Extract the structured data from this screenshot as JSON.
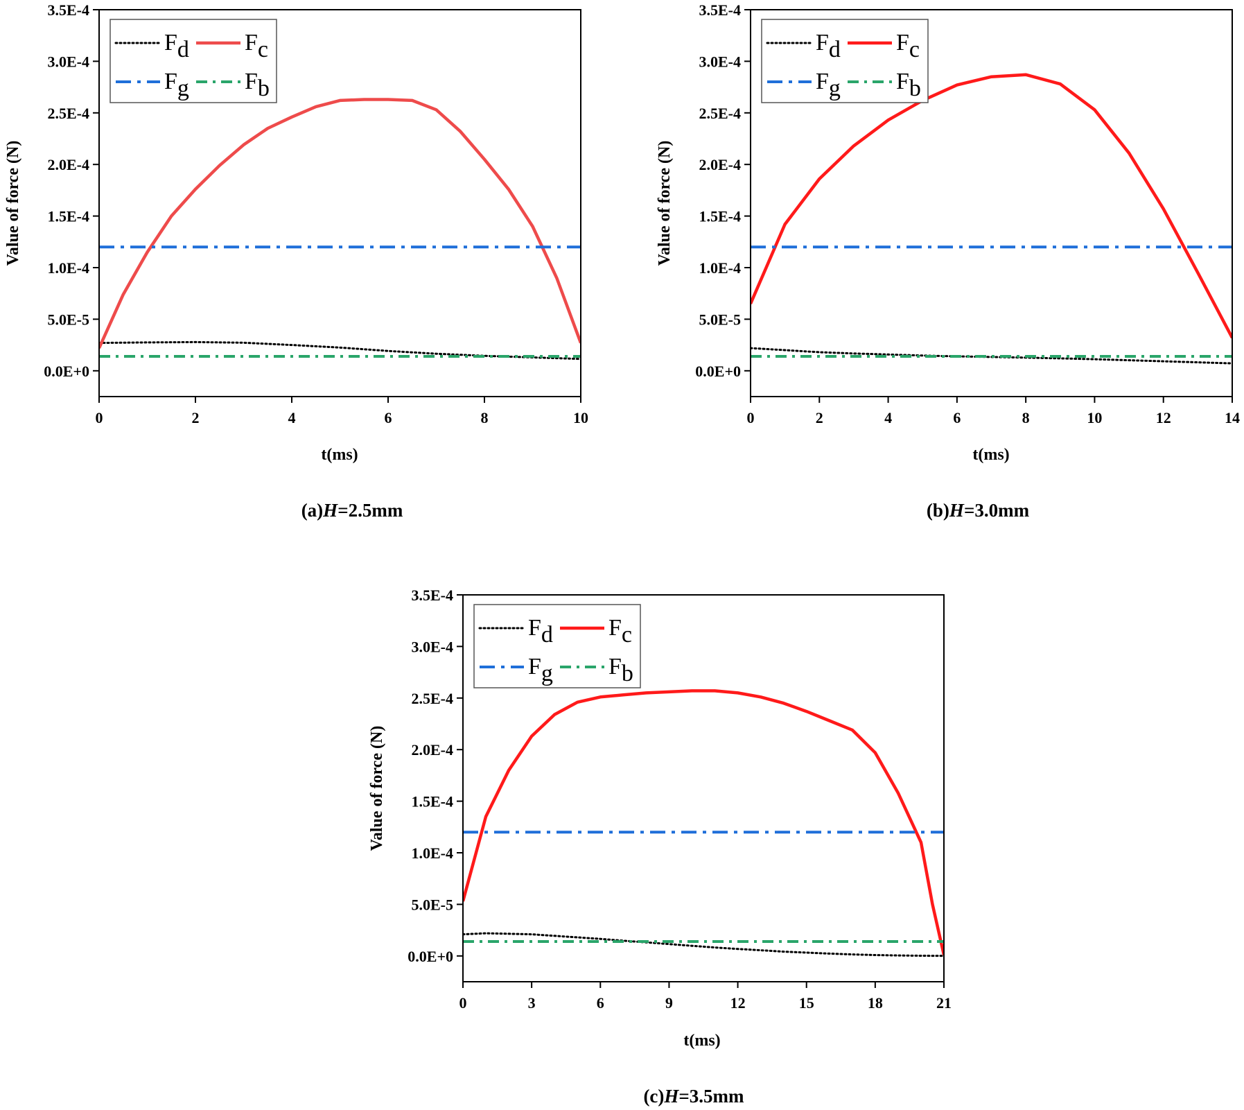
{
  "chart_data": [
    {
      "type": "line",
      "caption_prefix": "(a)",
      "caption_var": "H",
      "caption_suffix": "=2.5mm",
      "xlabel": "t(ms)",
      "ylabel": "Value of force (N)",
      "xlim": [
        0,
        10
      ],
      "ylim": [
        -2.5e-05,
        0.00035
      ],
      "xticks": [
        0,
        2,
        4,
        6,
        8,
        10
      ],
      "xtick_labels": [
        "0",
        "2",
        "4",
        "6",
        "8",
        "10"
      ],
      "yticks": [
        0,
        5e-05,
        0.0001,
        0.00015,
        0.0002,
        0.00025,
        0.0003,
        0.00035
      ],
      "ytick_labels": [
        "0.0E+0",
        "5.0E-5",
        "1.0E-4",
        "1.5E-4",
        "2.0E-4",
        "2.5E-4",
        "3.0E-4",
        "3.5E-4"
      ],
      "grid": false,
      "legend_position": "top-left",
      "series": [
        {
          "name": "Fd",
          "sub": "d",
          "color": "#000000",
          "style": "dotted",
          "x": [
            0,
            1,
            2,
            3,
            4,
            5,
            6,
            7,
            8,
            9,
            10
          ],
          "y": [
            2.7e-05,
            2.75e-05,
            2.78e-05,
            2.72e-05,
            2.5e-05,
            2.25e-05,
            1.92e-05,
            1.65e-05,
            1.45e-05,
            1.3e-05,
            1.15e-05
          ]
        },
        {
          "name": "Fc",
          "sub": "c",
          "color": "#ee4b4b",
          "style": "solid",
          "x": [
            0,
            0.5,
            1,
            1.5,
            2,
            2.5,
            3,
            3.5,
            4,
            4.5,
            5,
            5.5,
            6,
            6.5,
            7,
            7.5,
            8,
            8.5,
            9,
            9.5,
            10
          ],
          "y": [
            2.2e-05,
            7.4e-05,
            0.000115,
            0.00015,
            0.000176,
            0.000199,
            0.000219,
            0.000235,
            0.000246,
            0.000256,
            0.000262,
            0.000263,
            0.000263,
            0.000262,
            0.000253,
            0.000232,
            0.000205,
            0.000176,
            0.00014,
            9e-05,
            2.7e-05
          ]
        },
        {
          "name": "Fg",
          "sub": "g",
          "color": "#1f6fd9",
          "style": "dashdot",
          "x": [
            0,
            10
          ],
          "y": [
            0.00012,
            0.00012
          ]
        },
        {
          "name": "Fb",
          "sub": "b",
          "color": "#2aa56a",
          "style": "dashdot-small",
          "x": [
            0,
            10
          ],
          "y": [
            1.4e-05,
            1.4e-05
          ]
        }
      ]
    },
    {
      "type": "line",
      "caption_prefix": "(b)",
      "caption_var": "H",
      "caption_suffix": "=3.0mm",
      "xlabel": "t(ms)",
      "ylabel": "Value of force (N)",
      "xlim": [
        0,
        14
      ],
      "ylim": [
        -2.5e-05,
        0.00035
      ],
      "xticks": [
        0,
        2,
        4,
        6,
        8,
        10,
        12,
        14
      ],
      "xtick_labels": [
        "0",
        "2",
        "4",
        "6",
        "8",
        "10",
        "12",
        "14"
      ],
      "yticks": [
        0,
        5e-05,
        0.0001,
        0.00015,
        0.0002,
        0.00025,
        0.0003,
        0.00035
      ],
      "ytick_labels": [
        "0.0E+0",
        "5.0E-5",
        "1.0E-4",
        "1.5E-4",
        "2.0E-4",
        "2.5E-4",
        "3.0E-4",
        "3.5E-4"
      ],
      "grid": false,
      "legend_position": "top-left",
      "series": [
        {
          "name": "Fd",
          "sub": "d",
          "color": "#000000",
          "style": "dotted",
          "x": [
            0,
            1,
            2,
            3,
            4,
            5,
            6,
            7,
            8,
            9,
            10,
            11,
            12,
            13,
            14
          ],
          "y": [
            2.2e-05,
            2e-05,
            1.8e-05,
            1.68e-05,
            1.58e-05,
            1.48e-05,
            1.4e-05,
            1.34e-05,
            1.28e-05,
            1.2e-05,
            1.12e-05,
            1.02e-05,
            9.2e-06,
            8.2e-06,
            7.2e-06
          ]
        },
        {
          "name": "Fc",
          "sub": "c",
          "color": "#ff1a1a",
          "style": "solid",
          "x": [
            0,
            1,
            2,
            3,
            4,
            5,
            6,
            7,
            8,
            9,
            10,
            11,
            12,
            13,
            14
          ],
          "y": [
            6.5e-05,
            0.000142,
            0.000186,
            0.000218,
            0.000243,
            0.000262,
            0.000277,
            0.000285,
            0.000287,
            0.000278,
            0.000253,
            0.000211,
            0.000157,
            9.5e-05,
            3.2e-05
          ]
        },
        {
          "name": "Fg",
          "sub": "g",
          "color": "#1f6fd9",
          "style": "dashdot",
          "x": [
            0,
            14
          ],
          "y": [
            0.00012,
            0.00012
          ]
        },
        {
          "name": "Fb",
          "sub": "b",
          "color": "#2aa56a",
          "style": "dashdot-small",
          "x": [
            0,
            14
          ],
          "y": [
            1.4e-05,
            1.4e-05
          ]
        }
      ]
    },
    {
      "type": "line",
      "caption_prefix": "(c)",
      "caption_var": "H",
      "caption_suffix": "=3.5mm",
      "xlabel": "t(ms)",
      "ylabel": "Value of force (N)",
      "xlim": [
        0,
        21
      ],
      "ylim": [
        -2.5e-05,
        0.00035
      ],
      "xticks": [
        0,
        3,
        6,
        9,
        12,
        15,
        18,
        21
      ],
      "xtick_labels": [
        "0",
        "3",
        "6",
        "9",
        "12",
        "15",
        "18",
        "21"
      ],
      "yticks": [
        0,
        5e-05,
        0.0001,
        0.00015,
        0.0002,
        0.00025,
        0.0003,
        0.00035
      ],
      "ytick_labels": [
        "0.0E+0",
        "5.0E-5",
        "1.0E-4",
        "1.5E-4",
        "2.0E-4",
        "2.5E-4",
        "3.0E-4",
        "3.5E-4"
      ],
      "grid": false,
      "legend_position": "top-left",
      "series": [
        {
          "name": "Fd",
          "sub": "d",
          "color": "#000000",
          "style": "dotted",
          "x": [
            0,
            1,
            2,
            3,
            4,
            5,
            6,
            7,
            8,
            9,
            10,
            11,
            12,
            13,
            14,
            15,
            16,
            17,
            18,
            19,
            20,
            21
          ],
          "y": [
            2.1e-05,
            2.2e-05,
            2.15e-05,
            2.1e-05,
            1.95e-05,
            1.8e-05,
            1.65e-05,
            1.48e-05,
            1.32e-05,
            1.15e-05,
            9.8e-06,
            8.2e-06,
            6.8e-06,
            5.5e-06,
            4.2e-06,
            3.2e-06,
            2.3e-06,
            1.5e-06,
            9e-07,
            5e-07,
            2e-07,
            1e-07
          ]
        },
        {
          "name": "Fc",
          "sub": "c",
          "color": "#ff1a1a",
          "style": "solid",
          "x": [
            0,
            1,
            2,
            3,
            4,
            5,
            6,
            7,
            8,
            9,
            10,
            11,
            12,
            13,
            14,
            15,
            16,
            17,
            18,
            19,
            20,
            20.5,
            21
          ],
          "y": [
            5.3e-05,
            0.000135,
            0.00018,
            0.000213,
            0.000234,
            0.000246,
            0.000251,
            0.000253,
            0.000255,
            0.000256,
            0.000257,
            0.000257,
            0.000255,
            0.000251,
            0.000245,
            0.000237,
            0.000228,
            0.000219,
            0.000197,
            0.000158,
            0.00011,
            5e-05,
            1e-06
          ]
        },
        {
          "name": "Fg",
          "sub": "g",
          "color": "#1f6fd9",
          "style": "dashdot",
          "x": [
            0,
            21
          ],
          "y": [
            0.00012,
            0.00012
          ]
        },
        {
          "name": "Fb",
          "sub": "b",
          "color": "#2aa56a",
          "style": "dashdot-small",
          "x": [
            0,
            21
          ],
          "y": [
            1.4e-05,
            1.4e-05
          ]
        }
      ]
    }
  ]
}
